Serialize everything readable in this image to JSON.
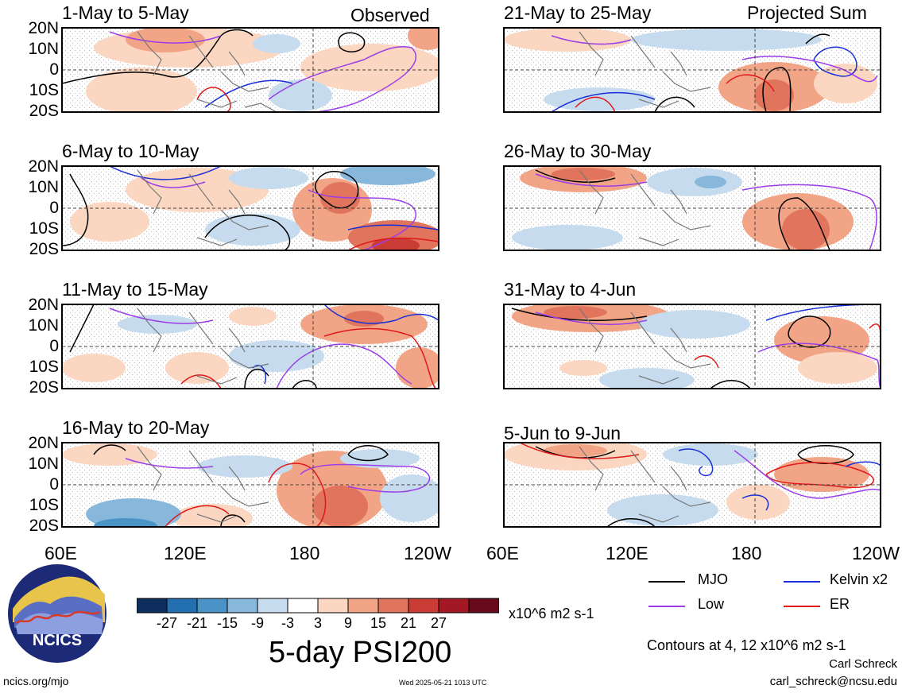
{
  "panels": [
    {
      "title": "1-May to 5-May",
      "side": "Observed"
    },
    {
      "title": "6-May to 10-May",
      "side": ""
    },
    {
      "title": "11-May to 15-May",
      "side": ""
    },
    {
      "title": "16-May to 20-May",
      "side": ""
    },
    {
      "title": "21-May to 25-May",
      "side": "Projected Sum"
    },
    {
      "title": "26-May to 30-May",
      "side": ""
    },
    {
      "title": "31-May to 4-Jun",
      "side": ""
    },
    {
      "title": "5-Jun to 9-Jun",
      "side": ""
    }
  ],
  "lat_labels": [
    "20N",
    "10N",
    "0",
    "10S",
    "20S"
  ],
  "lon_labels": [
    "60E",
    "120E",
    "180",
    "120W"
  ],
  "legend": {
    "items": [
      {
        "label": "MJO",
        "color": "#000000"
      },
      {
        "label": "Kelvin x2",
        "color": "#1a2fd8"
      },
      {
        "label": "Low",
        "color": "#9b3ee8"
      },
      {
        "label": "ER",
        "color": "#e01818"
      }
    ],
    "contours_note": "Contours at 4, 12 x10^6 m2 s-1"
  },
  "colorbar": {
    "colors": [
      "#0e2f5e",
      "#236fb0",
      "#4a93c6",
      "#87b8dc",
      "#c6dcee",
      "#ffffff",
      "#fbd6c1",
      "#f2a586",
      "#e0745c",
      "#c93d36",
      "#a41824",
      "#680a1c"
    ],
    "tick_labels": [
      "-27",
      "-21",
      "-15",
      "-9",
      "-3",
      "3",
      "9",
      "15",
      "21",
      "27"
    ],
    "units": "x10^6 m2 s-1"
  },
  "main_title": "5-day PSI200",
  "logo_text": "NCICS",
  "footer": {
    "url": "ncics.org/mjo",
    "timestamp": "Wed 2025-05-21 1013 UTC",
    "author": "Carl Schreck",
    "email": "carl_schreck@ncsu.edu"
  }
}
